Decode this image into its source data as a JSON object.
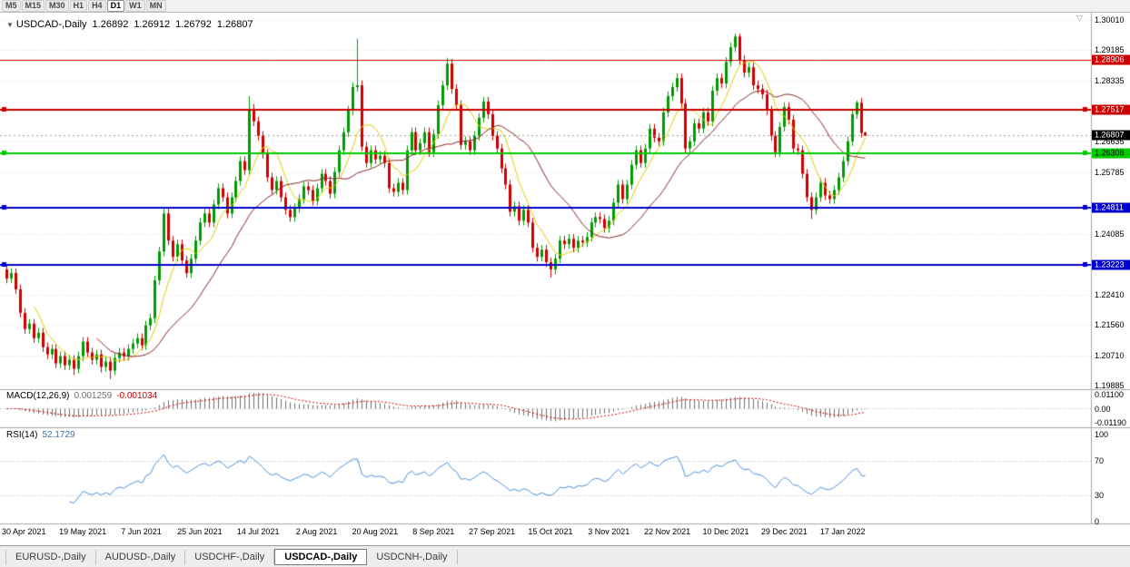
{
  "toolbar": {
    "timeframes": [
      "M5",
      "M15",
      "M30",
      "H1",
      "H4",
      "D1",
      "W1",
      "MN"
    ],
    "active": "D1"
  },
  "icons": {
    "collapse": "▼",
    "shift_marker": "▽"
  },
  "header": {
    "symbol": "USDCAD-,Daily",
    "open": "1.26892",
    "high": "1.26912",
    "low": "1.26792",
    "close": "1.26807"
  },
  "chart_data": {
    "type": "candlestick",
    "symbol": "USDCAD",
    "timeframe": "Daily",
    "colors": {
      "bull": "#009900",
      "bear": "#CC0000",
      "ma_fast": "#DDCC00",
      "ma_slow": "#882222",
      "macd_histogram": "#6E6E6E",
      "macd_signal": "#CC0000",
      "rsi_line": "#4A90D9",
      "grid": "#E2E2E2",
      "separator": "#A6A6A6",
      "current_price_badge": "#000000"
    },
    "date_labels": [
      "30 Apr 2021",
      "19 May 2021",
      "7 Jun 2021",
      "25 Jun 2021",
      "14 Jul 2021",
      "2 Aug 2021",
      "20 Aug 2021",
      "8 Sep 2021",
      "27 Sep 2021",
      "15 Oct 2021",
      "3 Nov 2021",
      "22 Nov 2021",
      "10 Dec 2021",
      "29 Dec 2021",
      "17 Jan 2022"
    ],
    "y_axis_labels": [
      "1.30010",
      "1.29185",
      "1.28335",
      "1.26635",
      "1.25785",
      "1.24085",
      "1.22410",
      "1.21560",
      "1.20710",
      "1.19885"
    ],
    "hlines": [
      {
        "price": 1.28906,
        "label": "1.28906",
        "color": "#CC0000",
        "width": 1,
        "handles": false
      },
      {
        "price": 1.27517,
        "label": "1.27517",
        "color": "#CC0000",
        "width": 2,
        "handles": true
      },
      {
        "price": 1.26308,
        "label": "1.26308",
        "color": "#00CC00",
        "width": 2,
        "handles": true,
        "text_color": "#000000"
      },
      {
        "price": 1.24811,
        "label": "1.24811",
        "color": "#0000CC",
        "width": 2,
        "handles": true
      },
      {
        "price": 1.23223,
        "label": "1.23223",
        "color": "#0000CC",
        "width": 2,
        "handles": true
      }
    ],
    "current_price": {
      "value": 1.26807,
      "label": "1.26807"
    },
    "moving_averages": [
      {
        "period": 7,
        "color": "#DDCC00"
      },
      {
        "period": 21,
        "color": "#882222"
      }
    ],
    "macd": {
      "label": "MACD(12,26,9)",
      "value_main": "0.001259",
      "value_signal": "-0.001034",
      "fast": 12,
      "slow": 26,
      "signal": 9,
      "axis_labels": [
        "0.01100",
        "0.00",
        "-0.01190"
      ]
    },
    "rsi": {
      "label": "RSI(14)",
      "value": "52.1729",
      "period": 14,
      "axis_labels": [
        "100",
        "70",
        "30",
        "0"
      ],
      "levels": [
        70,
        30
      ]
    },
    "candles": [
      [
        1.231,
        1.2323,
        1.2272,
        1.2285
      ],
      [
        1.2285,
        1.2313,
        1.2272,
        1.23
      ],
      [
        1.23,
        1.2313,
        1.2242,
        1.2255
      ],
      [
        1.2255,
        1.2268,
        1.2177,
        1.219
      ],
      [
        1.219,
        1.2203,
        1.2132,
        1.2145
      ],
      [
        1.2145,
        1.2173,
        1.2132,
        1.216
      ],
      [
        1.216,
        1.2173,
        1.2107,
        1.212
      ],
      [
        1.212,
        1.2148,
        1.2107,
        1.2135
      ],
      [
        1.2135,
        1.2148,
        1.2082,
        1.2095
      ],
      [
        1.2095,
        1.2108,
        1.2062,
        1.2075
      ],
      [
        1.2075,
        1.2103,
        1.2062,
        1.209
      ],
      [
        1.209,
        1.2103,
        1.2037,
        1.205
      ],
      [
        1.205,
        1.2083,
        1.2037,
        1.207
      ],
      [
        1.207,
        1.2083,
        1.2032,
        1.2045
      ],
      [
        1.2045,
        1.2073,
        1.2032,
        1.206
      ],
      [
        1.206,
        1.2073,
        1.2018,
        1.2035
      ],
      [
        1.2035,
        1.2083,
        1.2022,
        1.207
      ],
      [
        1.207,
        1.2123,
        1.2057,
        1.211
      ],
      [
        1.211,
        1.2123,
        1.2067,
        1.208
      ],
      [
        1.208,
        1.2093,
        1.2047,
        1.206
      ],
      [
        1.206,
        1.2088,
        1.2047,
        1.2075
      ],
      [
        1.2075,
        1.2088,
        1.2025,
        1.204
      ],
      [
        1.204,
        1.2068,
        1.2027,
        1.2055
      ],
      [
        1.2055,
        1.2068,
        1.2007,
        1.203
      ],
      [
        1.203,
        1.2078,
        1.2017,
        1.2065
      ],
      [
        1.2065,
        1.2093,
        1.2052,
        1.208
      ],
      [
        1.208,
        1.2093,
        1.2057,
        1.207
      ],
      [
        1.207,
        1.2103,
        1.2057,
        1.209
      ],
      [
        1.209,
        1.2118,
        1.2077,
        1.2105
      ],
      [
        1.2105,
        1.2133,
        1.2092,
        1.212
      ],
      [
        1.212,
        1.2133,
        1.2087,
        1.21
      ],
      [
        1.21,
        1.2168,
        1.2087,
        1.2155
      ],
      [
        1.2155,
        1.2188,
        1.2142,
        1.2175
      ],
      [
        1.2175,
        1.2293,
        1.2162,
        1.228
      ],
      [
        1.228,
        1.2373,
        1.2267,
        1.236
      ],
      [
        1.236,
        1.2478,
        1.2347,
        1.2465
      ],
      [
        1.2465,
        1.2478,
        1.2377,
        1.239
      ],
      [
        1.239,
        1.2403,
        1.2332,
        1.2345
      ],
      [
        1.2345,
        1.2393,
        1.2332,
        1.238
      ],
      [
        1.238,
        1.2393,
        1.2322,
        1.2335
      ],
      [
        1.2335,
        1.2348,
        1.2287,
        1.23
      ],
      [
        1.23,
        1.2353,
        1.2287,
        1.234
      ],
      [
        1.234,
        1.2403,
        1.2327,
        1.239
      ],
      [
        1.239,
        1.2453,
        1.2377,
        1.244
      ],
      [
        1.244,
        1.2478,
        1.2427,
        1.2465
      ],
      [
        1.2465,
        1.2478,
        1.2427,
        1.244
      ],
      [
        1.244,
        1.2503,
        1.2427,
        1.249
      ],
      [
        1.249,
        1.2548,
        1.2477,
        1.2535
      ],
      [
        1.2535,
        1.2548,
        1.2497,
        1.251
      ],
      [
        1.251,
        1.2523,
        1.2452,
        1.2465
      ],
      [
        1.2465,
        1.2523,
        1.2452,
        1.251
      ],
      [
        1.251,
        1.2568,
        1.2497,
        1.2555
      ],
      [
        1.2555,
        1.2623,
        1.2542,
        1.261
      ],
      [
        1.261,
        1.2623,
        1.2572,
        1.2585
      ],
      [
        1.2585,
        1.279,
        1.2572,
        1.2755
      ],
      [
        1.2755,
        1.2768,
        1.2707,
        1.272
      ],
      [
        1.272,
        1.2733,
        1.2667,
        1.268
      ],
      [
        1.268,
        1.2693,
        1.2617,
        1.263
      ],
      [
        1.263,
        1.2643,
        1.2552,
        1.2565
      ],
      [
        1.2565,
        1.2578,
        1.2517,
        1.253
      ],
      [
        1.253,
        1.2568,
        1.2517,
        1.2555
      ],
      [
        1.2555,
        1.2568,
        1.2497,
        1.251
      ],
      [
        1.251,
        1.2523,
        1.2462,
        1.2475
      ],
      [
        1.2475,
        1.2488,
        1.2442,
        1.2455
      ],
      [
        1.2455,
        1.2493,
        1.2442,
        1.248
      ],
      [
        1.248,
        1.2518,
        1.2467,
        1.2505
      ],
      [
        1.2505,
        1.2553,
        1.2492,
        1.254
      ],
      [
        1.254,
        1.2553,
        1.2517,
        1.253
      ],
      [
        1.253,
        1.2543,
        1.2487,
        1.25
      ],
      [
        1.25,
        1.2548,
        1.2487,
        1.2535
      ],
      [
        1.2535,
        1.2588,
        1.2522,
        1.2575
      ],
      [
        1.2575,
        1.2588,
        1.2542,
        1.2555
      ],
      [
        1.2555,
        1.2568,
        1.2507,
        1.252
      ],
      [
        1.252,
        1.2593,
        1.2507,
        1.258
      ],
      [
        1.258,
        1.2653,
        1.2567,
        1.264
      ],
      [
        1.264,
        1.2703,
        1.2627,
        1.269
      ],
      [
        1.269,
        1.2763,
        1.2677,
        1.275
      ],
      [
        1.275,
        1.2828,
        1.2737,
        1.2815
      ],
      [
        1.2815,
        1.2949,
        1.2802,
        1.282
      ],
      [
        1.282,
        1.2833,
        1.2637,
        1.265
      ],
      [
        1.265,
        1.2663,
        1.2592,
        1.2605
      ],
      [
        1.2605,
        1.2653,
        1.2592,
        1.264
      ],
      [
        1.264,
        1.2653,
        1.2602,
        1.2615
      ],
      [
        1.2615,
        1.2638,
        1.2602,
        1.2625
      ],
      [
        1.2625,
        1.2638,
        1.2592,
        1.2605
      ],
      [
        1.2605,
        1.2618,
        1.2522,
        1.2535
      ],
      [
        1.2535,
        1.2548,
        1.2512,
        1.2525
      ],
      [
        1.2525,
        1.2563,
        1.2512,
        1.255
      ],
      [
        1.255,
        1.2563,
        1.2517,
        1.253
      ],
      [
        1.253,
        1.2653,
        1.2517,
        1.264
      ],
      [
        1.264,
        1.2703,
        1.2627,
        1.269
      ],
      [
        1.269,
        1.2703,
        1.2627,
        1.264
      ],
      [
        1.264,
        1.2673,
        1.2627,
        1.266
      ],
      [
        1.266,
        1.2703,
        1.2647,
        1.269
      ],
      [
        1.269,
        1.2703,
        1.2622,
        1.2635
      ],
      [
        1.2635,
        1.2698,
        1.2622,
        1.2685
      ],
      [
        1.2685,
        1.2778,
        1.2672,
        1.2765
      ],
      [
        1.2765,
        1.2833,
        1.2752,
        1.282
      ],
      [
        1.282,
        1.2896,
        1.2807,
        1.288
      ],
      [
        1.288,
        1.2893,
        1.2797,
        1.281
      ],
      [
        1.281,
        1.2823,
        1.2752,
        1.2765
      ],
      [
        1.2765,
        1.2778,
        1.2642,
        1.2655
      ],
      [
        1.2655,
        1.2678,
        1.2642,
        1.2665
      ],
      [
        1.2665,
        1.2678,
        1.2627,
        1.264
      ],
      [
        1.264,
        1.2693,
        1.2627,
        1.268
      ],
      [
        1.268,
        1.2743,
        1.2667,
        1.273
      ],
      [
        1.273,
        1.2788,
        1.2717,
        1.2775
      ],
      [
        1.2775,
        1.2788,
        1.2727,
        1.274
      ],
      [
        1.274,
        1.2753,
        1.2667,
        1.268
      ],
      [
        1.268,
        1.2693,
        1.2632,
        1.2645
      ],
      [
        1.2645,
        1.2658,
        1.2577,
        1.259
      ],
      [
        1.259,
        1.2603,
        1.2532,
        1.2545
      ],
      [
        1.2545,
        1.2558,
        1.2457,
        1.247
      ],
      [
        1.247,
        1.2498,
        1.2457,
        1.2485
      ],
      [
        1.2485,
        1.2498,
        1.2432,
        1.2445
      ],
      [
        1.2445,
        1.2488,
        1.2432,
        1.2475
      ],
      [
        1.2475,
        1.2488,
        1.2427,
        1.244
      ],
      [
        1.244,
        1.2453,
        1.2357,
        1.237
      ],
      [
        1.237,
        1.2383,
        1.2332,
        1.2345
      ],
      [
        1.2345,
        1.2378,
        1.2332,
        1.2365
      ],
      [
        1.2365,
        1.2378,
        1.2317,
        1.233
      ],
      [
        1.233,
        1.2343,
        1.2288,
        1.231
      ],
      [
        1.231,
        1.2353,
        1.2297,
        1.234
      ],
      [
        1.234,
        1.2403,
        1.2327,
        1.239
      ],
      [
        1.239,
        1.2403,
        1.2367,
        1.238
      ],
      [
        1.238,
        1.2408,
        1.2367,
        1.2395
      ],
      [
        1.2395,
        1.2408,
        1.2357,
        1.237
      ],
      [
        1.237,
        1.2403,
        1.2357,
        1.239
      ],
      [
        1.239,
        1.2403,
        1.2372,
        1.2385
      ],
      [
        1.2385,
        1.2413,
        1.2372,
        1.24
      ],
      [
        1.24,
        1.2453,
        1.2387,
        1.244
      ],
      [
        1.244,
        1.2468,
        1.2427,
        1.2455
      ],
      [
        1.2455,
        1.2468,
        1.2437,
        1.245
      ],
      [
        1.245,
        1.2463,
        1.2412,
        1.2425
      ],
      [
        1.2425,
        1.2458,
        1.2412,
        1.2445
      ],
      [
        1.2445,
        1.2508,
        1.2432,
        1.2495
      ],
      [
        1.2495,
        1.2558,
        1.2482,
        1.2545
      ],
      [
        1.2545,
        1.2558,
        1.2492,
        1.2505
      ],
      [
        1.2505,
        1.2558,
        1.2492,
        1.2545
      ],
      [
        1.2545,
        1.2613,
        1.2532,
        1.26
      ],
      [
        1.26,
        1.2653,
        1.2587,
        1.264
      ],
      [
        1.264,
        1.2653,
        1.2592,
        1.2605
      ],
      [
        1.2605,
        1.2658,
        1.2592,
        1.2645
      ],
      [
        1.2645,
        1.2713,
        1.2632,
        1.27
      ],
      [
        1.27,
        1.2713,
        1.2662,
        1.2675
      ],
      [
        1.2675,
        1.2688,
        1.2652,
        1.2665
      ],
      [
        1.2665,
        1.2758,
        1.2652,
        1.2745
      ],
      [
        1.2745,
        1.2803,
        1.2732,
        1.279
      ],
      [
        1.279,
        1.2828,
        1.2777,
        1.2815
      ],
      [
        1.2815,
        1.2853,
        1.2802,
        1.284
      ],
      [
        1.284,
        1.2853,
        1.2757,
        1.277
      ],
      [
        1.277,
        1.2783,
        1.2632,
        1.2645
      ],
      [
        1.2645,
        1.2678,
        1.2632,
        1.2665
      ],
      [
        1.2665,
        1.2728,
        1.2652,
        1.2715
      ],
      [
        1.2715,
        1.2728,
        1.2687,
        1.27
      ],
      [
        1.27,
        1.2758,
        1.2687,
        1.2745
      ],
      [
        1.2745,
        1.2758,
        1.2707,
        1.272
      ],
      [
        1.272,
        1.2818,
        1.2707,
        1.2805
      ],
      [
        1.2805,
        1.2853,
        1.2792,
        1.284
      ],
      [
        1.284,
        1.2853,
        1.2812,
        1.2825
      ],
      [
        1.2825,
        1.2898,
        1.2812,
        1.2885
      ],
      [
        1.2885,
        1.2938,
        1.2872,
        1.2925
      ],
      [
        1.2925,
        1.2963,
        1.2912,
        1.2955
      ],
      [
        1.2955,
        1.2963,
        1.2877,
        1.289
      ],
      [
        1.289,
        1.2903,
        1.2842,
        1.2855
      ],
      [
        1.2855,
        1.2883,
        1.2842,
        1.287
      ],
      [
        1.287,
        1.2883,
        1.2807,
        1.282
      ],
      [
        1.282,
        1.2833,
        1.2797,
        1.281
      ],
      [
        1.281,
        1.2823,
        1.2782,
        1.2795
      ],
      [
        1.2795,
        1.2808,
        1.2737,
        1.275
      ],
      [
        1.275,
        1.2763,
        1.2667,
        1.268
      ],
      [
        1.268,
        1.2693,
        1.2622,
        1.2635
      ],
      [
        1.2635,
        1.2718,
        1.2622,
        1.2705
      ],
      [
        1.2705,
        1.2773,
        1.2692,
        1.276
      ],
      [
        1.276,
        1.2773,
        1.2712,
        1.2725
      ],
      [
        1.2725,
        1.2738,
        1.2632,
        1.2645
      ],
      [
        1.2645,
        1.2658,
        1.2627,
        1.264
      ],
      [
        1.264,
        1.2653,
        1.2562,
        1.2575
      ],
      [
        1.2575,
        1.2588,
        1.2497,
        1.251
      ],
      [
        1.251,
        1.2523,
        1.245,
        1.2475
      ],
      [
        1.2475,
        1.2523,
        1.2462,
        1.251
      ],
      [
        1.251,
        1.2563,
        1.2497,
        1.255
      ],
      [
        1.255,
        1.2563,
        1.2502,
        1.2515
      ],
      [
        1.2515,
        1.2528,
        1.2492,
        1.2505
      ],
      [
        1.2505,
        1.2543,
        1.2492,
        1.253
      ],
      [
        1.253,
        1.2578,
        1.2517,
        1.2565
      ],
      [
        1.2565,
        1.2623,
        1.2552,
        1.261
      ],
      [
        1.261,
        1.2678,
        1.2597,
        1.2665
      ],
      [
        1.2665,
        1.2753,
        1.2652,
        1.274
      ],
      [
        1.274,
        1.2778,
        1.2727,
        1.2772
      ],
      [
        1.2772,
        1.2785,
        1.2675,
        1.2688
      ],
      [
        1.26892,
        1.26912,
        1.26792,
        1.26807
      ]
    ]
  },
  "tabs": {
    "items": [
      "EURUSD-,Daily",
      "AUDUSD-,Daily",
      "USDCHF-,Daily",
      "USDCAD-,Daily",
      "USDCNH-,Daily"
    ],
    "active_index": 3
  }
}
